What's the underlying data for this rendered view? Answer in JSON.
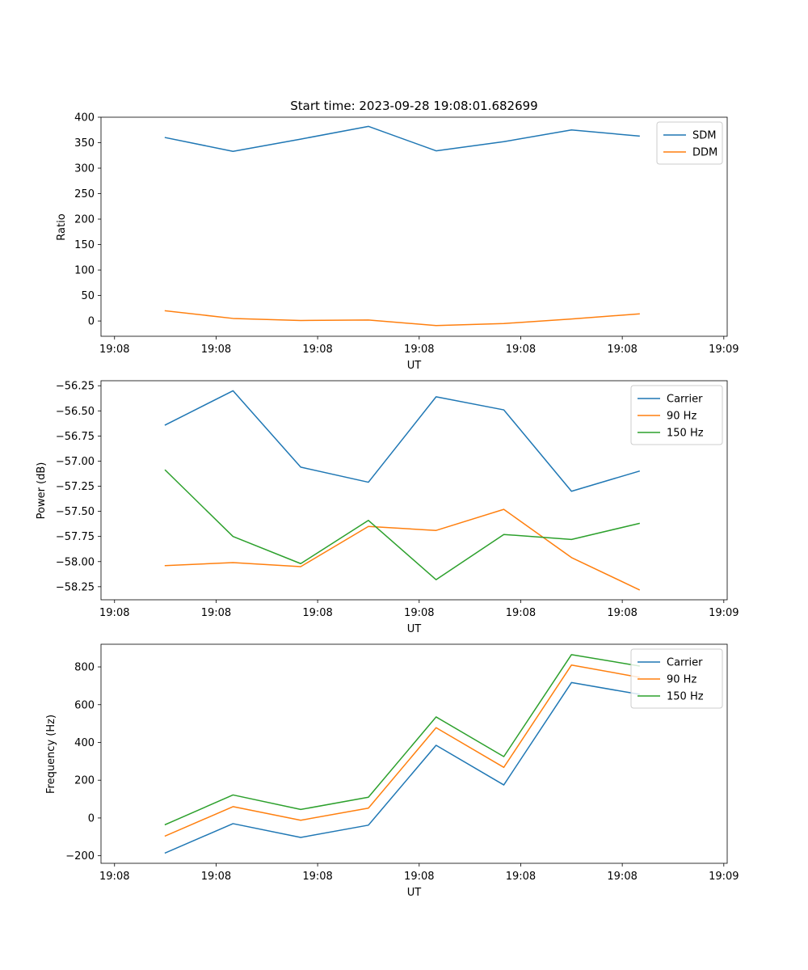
{
  "figure_title": "Start time: 2023-09-28 19:08:01.682699",
  "chart_data": [
    {
      "type": "line",
      "title": "Start time: 2023-09-28 19:08:01.682699",
      "xlabel": "UT",
      "ylabel": "Ratio",
      "x": [
        1,
        2,
        3,
        4,
        5,
        6,
        7,
        8
      ],
      "xlim": [
        0.05,
        9.3
      ],
      "xticks": [
        0.25,
        1.75,
        3.25,
        4.75,
        6.25,
        7.75,
        9.25
      ],
      "xtick_labels": [
        "19:08",
        "19:08",
        "19:08",
        "19:08",
        "19:08",
        "19:08",
        "19:09"
      ],
      "ylim": [
        -30,
        400
      ],
      "yticks": [
        0,
        50,
        100,
        150,
        200,
        250,
        300,
        350,
        400
      ],
      "ytick_labels": [
        "0",
        "50",
        "100",
        "150",
        "200",
        "250",
        "300",
        "350",
        "400"
      ],
      "legend_position": "top-right",
      "series": [
        {
          "name": "SDM",
          "color": "#1f77b4",
          "values": [
            360,
            333,
            357,
            382,
            334,
            352,
            375,
            363
          ]
        },
        {
          "name": "DDM",
          "color": "#ff7f0e",
          "values": [
            20,
            5,
            1,
            2,
            -9,
            -5,
            4,
            14
          ]
        }
      ]
    },
    {
      "type": "line",
      "title": "",
      "xlabel": "UT",
      "ylabel": "Power (dB)",
      "x": [
        1,
        2,
        3,
        4,
        5,
        6,
        7,
        8
      ],
      "xlim": [
        0.05,
        9.3
      ],
      "xticks": [
        0.25,
        1.75,
        3.25,
        4.75,
        6.25,
        7.75,
        9.25
      ],
      "xtick_labels": [
        "19:08",
        "19:08",
        "19:08",
        "19:08",
        "19:08",
        "19:08",
        "19:09"
      ],
      "ylim": [
        -58.38,
        -56.2
      ],
      "yticks": [
        -58.25,
        -58.0,
        -57.75,
        -57.5,
        -57.25,
        -57.0,
        -56.75,
        -56.5,
        -56.25
      ],
      "ytick_labels": [
        "−58.25",
        "−58.00",
        "−57.75",
        "−57.50",
        "−57.25",
        "−57.00",
        "−56.75",
        "−56.50",
        "−56.25"
      ],
      "legend_position": "top-right",
      "series": [
        {
          "name": "Carrier",
          "color": "#1f77b4",
          "values": [
            -56.64,
            -56.3,
            -57.06,
            -57.21,
            -56.36,
            -56.49,
            -57.3,
            -57.1
          ]
        },
        {
          "name": "90 Hz",
          "color": "#ff7f0e",
          "values": [
            -58.04,
            -58.01,
            -58.05,
            -57.65,
            -57.69,
            -57.48,
            -57.96,
            -58.28
          ]
        },
        {
          "name": "150 Hz",
          "color": "#2ca02c",
          "values": [
            -57.09,
            -57.75,
            -58.02,
            -57.59,
            -58.18,
            -57.73,
            -57.78,
            -57.62
          ]
        }
      ]
    },
    {
      "type": "line",
      "title": "",
      "xlabel": "UT",
      "ylabel": "Frequency (Hz)",
      "x": [
        1,
        2,
        3,
        4,
        5,
        6,
        7,
        8
      ],
      "xlim": [
        0.05,
        9.3
      ],
      "xticks": [
        0.25,
        1.75,
        3.25,
        4.75,
        6.25,
        7.75,
        9.25
      ],
      "xtick_labels": [
        "19:08",
        "19:08",
        "19:08",
        "19:08",
        "19:08",
        "19:08",
        "19:09"
      ],
      "ylim": [
        -240,
        920
      ],
      "yticks": [
        -200,
        0,
        200,
        400,
        600,
        800
      ],
      "ytick_labels": [
        "−200",
        "0",
        "200",
        "400",
        "600",
        "800"
      ],
      "legend_position": "top-right",
      "series": [
        {
          "name": "Carrier",
          "color": "#1f77b4",
          "values": [
            -185,
            -30,
            -103,
            -38,
            385,
            175,
            717,
            655
          ]
        },
        {
          "name": "90 Hz",
          "color": "#ff7f0e",
          "values": [
            -95,
            60,
            -12,
            52,
            478,
            268,
            810,
            745
          ]
        },
        {
          "name": "150 Hz",
          "color": "#2ca02c",
          "values": [
            -35,
            122,
            45,
            110,
            535,
            325,
            865,
            805
          ]
        }
      ]
    }
  ]
}
